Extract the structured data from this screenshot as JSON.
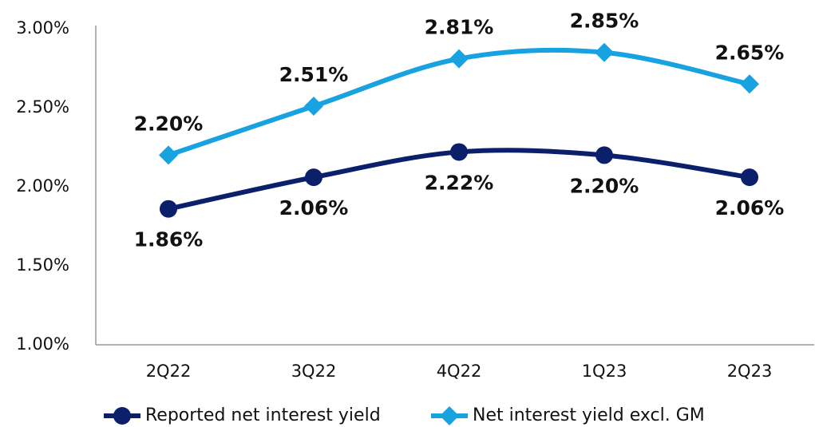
{
  "chart_data": {
    "type": "line",
    "categories": [
      "2Q22",
      "3Q22",
      "4Q22",
      "1Q23",
      "2Q23"
    ],
    "series": [
      {
        "name": "Reported net interest yield",
        "color": "#0b1f6b",
        "marker": "circle",
        "values": [
          1.86,
          2.06,
          2.22,
          2.2,
          2.06
        ],
        "value_labels": [
          "1.86%",
          "2.06%",
          "2.22%",
          "2.20%",
          "2.06%"
        ]
      },
      {
        "name": "Net interest yield excl. GM",
        "color": "#18a3e0",
        "marker": "diamond",
        "values": [
          2.2,
          2.51,
          2.81,
          2.85,
          2.65
        ],
        "value_labels": [
          "2.20%",
          "2.51%",
          "2.81%",
          "2.85%",
          "2.65%"
        ]
      }
    ],
    "ylim": [
      1,
      3
    ],
    "yticks": [
      {
        "value": 1,
        "label": "1.00%"
      },
      {
        "value": 1.5,
        "label": "1.50%"
      },
      {
        "value": 2,
        "label": "2.00%"
      },
      {
        "value": 2.5,
        "label": "2.50%"
      },
      {
        "value": 3,
        "label": "3.00%"
      }
    ],
    "grid": false,
    "legend": "bottom"
  }
}
